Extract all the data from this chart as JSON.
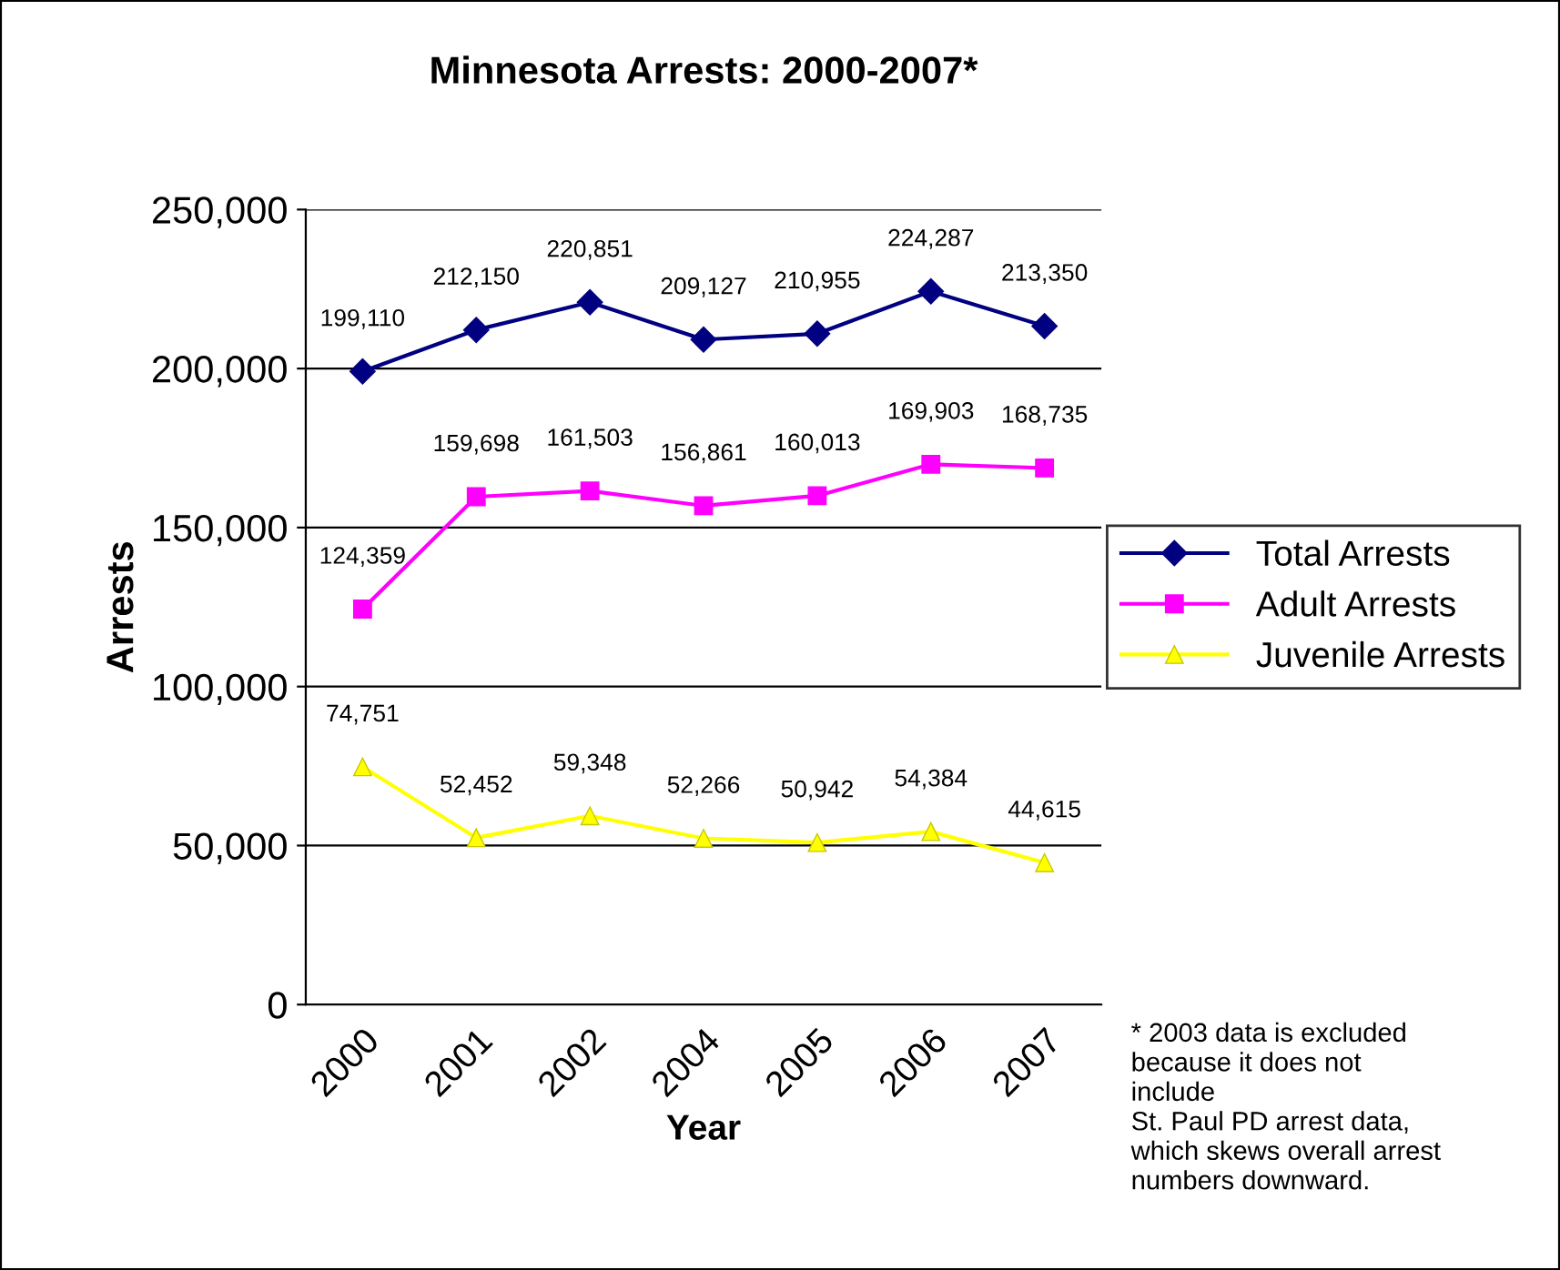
{
  "chart_data": {
    "type": "line",
    "title": "Minnesota Arrests: 2000-2007*",
    "xlabel": "Year",
    "ylabel": "Arrests",
    "categories": [
      "2000",
      "2001",
      "2002",
      "2004",
      "2005",
      "2006",
      "2007"
    ],
    "series": [
      {
        "name": "Total Arrests",
        "color": "#000080",
        "marker": "diamond",
        "values": [
          199110,
          212150,
          220851,
          209127,
          210955,
          224287,
          213350
        ],
        "value_labels": [
          "199,110",
          "212,150",
          "220,851",
          "209,127",
          "210,955",
          "224,287",
          "213,350"
        ]
      },
      {
        "name": "Adult Arrests",
        "color": "#ff00ff",
        "marker": "square",
        "values": [
          124359,
          159698,
          161503,
          156861,
          160013,
          169903,
          168735
        ],
        "value_labels": [
          "124,359",
          "159,698",
          "161,503",
          "156,861",
          "160,013",
          "169,903",
          "168,735"
        ]
      },
      {
        "name": "Juvenile Arrests",
        "color": "#ffff00",
        "marker": "triangle",
        "values": [
          74751,
          52452,
          59348,
          52266,
          50942,
          54384,
          44615
        ],
        "value_labels": [
          "74,751",
          "52,452",
          "59,348",
          "52,266",
          "50,942",
          "54,384",
          "44,615"
        ]
      }
    ],
    "ylim": [
      0,
      250000
    ],
    "yticks": [
      0,
      {
        "value": 50000,
        "label": "50,000"
      },
      {
        "value": 100000,
        "label": "100,000"
      },
      {
        "value": 150000,
        "label": "150,000"
      },
      {
        "value": 200000,
        "label": "200,000"
      },
      {
        "value": 250000,
        "label": "250,000"
      }
    ],
    "grid": "y",
    "legend": "right",
    "line_style": "solid",
    "annotations": [
      "* 2003 data is excluded\nbecause it does not\ninclude\nSt. Paul PD arrest data,\nwhich skews overall arrest\nnumbers downward."
    ]
  }
}
